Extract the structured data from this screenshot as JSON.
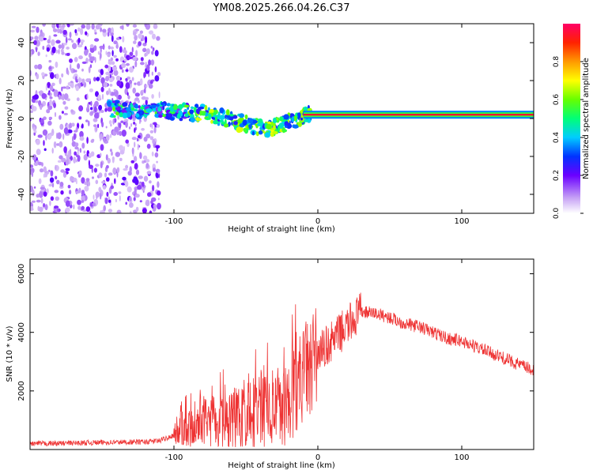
{
  "title": "YM08.2025.266.04.26.C37",
  "chart_data": [
    {
      "type": "heatmap",
      "xlabel": "Height of straight line (km)",
      "ylabel": "Frequency (Hz)",
      "xlim": [
        -200,
        150
      ],
      "ylim": [
        -50,
        50
      ],
      "xticks": [
        -100,
        0,
        100
      ],
      "yticks": [
        40,
        20,
        0,
        -20,
        -40
      ],
      "colorbar": {
        "label": "Normalized spectral amplitude",
        "range": [
          0.0,
          1.0
        ],
        "ticks": [
          0.0,
          0.2,
          0.4,
          0.6,
          0.8
        ]
      },
      "features": [
        {
          "name": "noise-region",
          "x_range": [
            -200,
            -110
          ],
          "freq_range": [
            -50,
            50
          ],
          "amplitude": 0.15
        },
        {
          "name": "signal-band",
          "x_range": [
            -140,
            150
          ],
          "freq_start": 5,
          "freq_min": -10,
          "freq_end": 2
        },
        {
          "name": "carrier-line",
          "x_range": [
            -10,
            150
          ],
          "freq": 2,
          "amplitude": 0.95
        }
      ]
    },
    {
      "type": "line",
      "xlabel": "Height of straight line (km)",
      "ylabel": "SNR (10 * v/v)",
      "xlim": [
        -200,
        150
      ],
      "ylim": [
        0,
        6500
      ],
      "xticks": [
        -100,
        0,
        100
      ],
      "yticks": [
        2000,
        4000,
        6000
      ],
      "series": [
        {
          "name": "SNR",
          "color": "#ee3333",
          "x": [
            -200,
            -180,
            -160,
            -140,
            -120,
            -110,
            -100,
            -90,
            -80,
            -70,
            -60,
            -50,
            -40,
            -30,
            -20,
            -15,
            -10,
            0,
            10,
            20,
            30,
            40,
            50,
            60,
            70,
            80,
            90,
            100,
            110,
            120,
            130,
            140,
            150
          ],
          "values": [
            200,
            210,
            230,
            250,
            260,
            300,
            500,
            800,
            1000,
            900,
            1000,
            1100,
            1300,
            1300,
            1600,
            2200,
            2600,
            3300,
            3700,
            4200,
            4700,
            4650,
            4500,
            4300,
            4200,
            4000,
            3800,
            3700,
            3500,
            3300,
            3100,
            2900,
            2700
          ]
        }
      ]
    }
  ]
}
